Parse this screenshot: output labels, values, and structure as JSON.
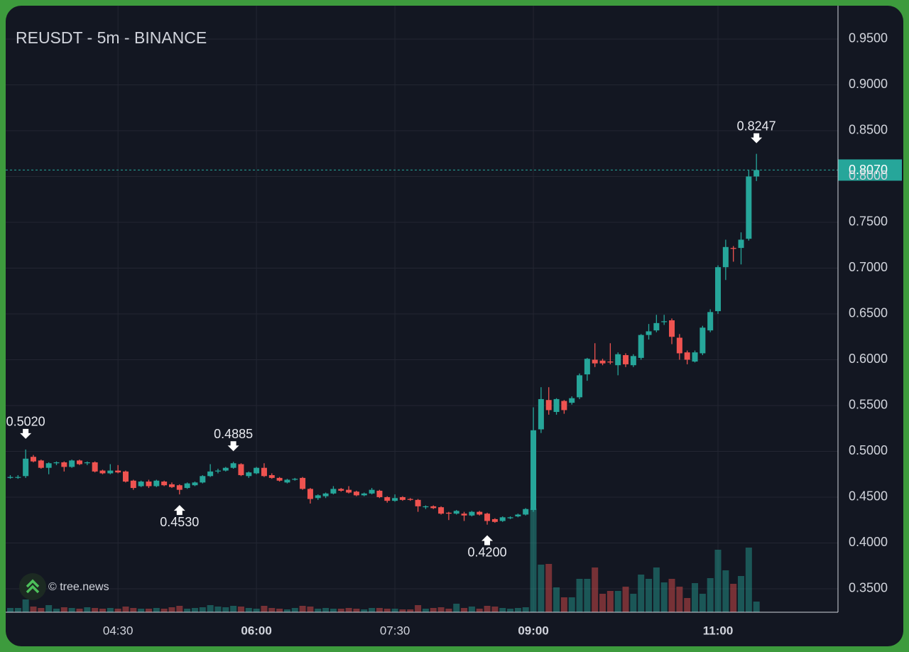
{
  "chart_data": {
    "type": "candlestick",
    "title": "REUSDT - 5m - BINANCE",
    "watermark": "© tree.news",
    "up_color": "#26a69a",
    "down_color": "#ef5350",
    "grid": true,
    "x": [
      "03:20",
      "03:25",
      "03:30",
      "03:35",
      "03:40",
      "03:45",
      "03:50",
      "03:55",
      "04:00",
      "04:05",
      "04:10",
      "04:15",
      "04:20",
      "04:25",
      "04:30",
      "04:35",
      "04:40",
      "04:45",
      "04:50",
      "04:55",
      "05:00",
      "05:05",
      "05:10",
      "05:15",
      "05:20",
      "05:25",
      "05:30",
      "05:35",
      "05:40",
      "05:45",
      "05:50",
      "05:55",
      "06:00",
      "06:05",
      "06:10",
      "06:15",
      "06:20",
      "06:25",
      "06:30",
      "06:35",
      "06:40",
      "06:45",
      "06:50",
      "06:55",
      "07:00",
      "07:05",
      "07:10",
      "07:15",
      "07:20",
      "07:25",
      "07:30",
      "07:35",
      "07:40",
      "07:45",
      "07:50",
      "07:55",
      "08:00",
      "08:05",
      "08:10",
      "08:15",
      "08:20",
      "08:25",
      "08:30",
      "08:35",
      "08:40",
      "08:45",
      "08:50",
      "08:55",
      "09:00",
      "09:05",
      "09:10",
      "09:15",
      "09:20",
      "09:25",
      "09:30",
      "09:35",
      "09:40",
      "09:45",
      "09:50",
      "09:55",
      "10:00",
      "10:05",
      "10:10",
      "10:15",
      "10:20",
      "10:25",
      "10:30",
      "10:35",
      "10:40",
      "10:45",
      "10:50",
      "10:55",
      "11:00",
      "11:05",
      "11:10",
      "11:15",
      "11:20",
      "11:25"
    ],
    "open": [
      0.471,
      0.472,
      0.473,
      0.494,
      0.49,
      0.482,
      0.487,
      0.488,
      0.483,
      0.49,
      0.487,
      0.488,
      0.479,
      0.476,
      0.479,
      0.478,
      0.468,
      0.462,
      0.467,
      0.462,
      0.467,
      0.464,
      0.463,
      0.46,
      0.463,
      0.466,
      0.473,
      0.478,
      0.479,
      0.482,
      0.486,
      0.473,
      0.476,
      0.482,
      0.474,
      0.471,
      0.466,
      0.469,
      0.471,
      0.459,
      0.449,
      0.451,
      0.454,
      0.459,
      0.458,
      0.456,
      0.452,
      0.454,
      0.457,
      0.45,
      0.446,
      0.45,
      0.448,
      0.447,
      0.439,
      0.44,
      0.439,
      0.433,
      0.432,
      0.432,
      0.43,
      0.434,
      0.432,
      0.426,
      0.424,
      0.427,
      0.429,
      0.431,
      0.436,
      0.524,
      0.556,
      0.543,
      0.555,
      0.553,
      0.559,
      0.584,
      0.6,
      0.599,
      0.598,
      0.594,
      0.605,
      0.594,
      0.602,
      0.627,
      0.632,
      0.641,
      0.643,
      0.624,
      0.608,
      0.598,
      0.607,
      0.632,
      0.653,
      0.701,
      0.722,
      0.722,
      0.732,
      0.8
    ],
    "high": [
      0.474,
      0.474,
      0.502,
      0.496,
      0.491,
      0.488,
      0.489,
      0.489,
      0.491,
      0.491,
      0.489,
      0.489,
      0.48,
      0.486,
      0.485,
      0.479,
      0.469,
      0.468,
      0.469,
      0.469,
      0.468,
      0.466,
      0.464,
      0.466,
      0.467,
      0.474,
      0.486,
      0.481,
      0.483,
      0.4885,
      0.487,
      0.478,
      0.483,
      0.487,
      0.476,
      0.472,
      0.47,
      0.471,
      0.472,
      0.46,
      0.453,
      0.455,
      0.462,
      0.46,
      0.462,
      0.457,
      0.455,
      0.46,
      0.458,
      0.451,
      0.453,
      0.451,
      0.449,
      0.448,
      0.441,
      0.441,
      0.44,
      0.434,
      0.436,
      0.434,
      0.435,
      0.435,
      0.433,
      0.427,
      0.429,
      0.429,
      0.432,
      0.438,
      0.548,
      0.57,
      0.57,
      0.558,
      0.556,
      0.56,
      0.585,
      0.602,
      0.618,
      0.601,
      0.618,
      0.608,
      0.607,
      0.606,
      0.628,
      0.639,
      0.649,
      0.649,
      0.645,
      0.628,
      0.61,
      0.61,
      0.637,
      0.655,
      0.703,
      0.731,
      0.724,
      0.739,
      0.807,
      0.8247
    ],
    "low": [
      0.47,
      0.47,
      0.471,
      0.488,
      0.481,
      0.475,
      0.485,
      0.478,
      0.482,
      0.485,
      0.485,
      0.477,
      0.475,
      0.475,
      0.476,
      0.466,
      0.458,
      0.461,
      0.46,
      0.461,
      0.462,
      0.46,
      0.453,
      0.459,
      0.462,
      0.465,
      0.472,
      0.476,
      0.478,
      0.481,
      0.473,
      0.471,
      0.475,
      0.472,
      0.47,
      0.467,
      0.465,
      0.468,
      0.458,
      0.443,
      0.447,
      0.449,
      0.453,
      0.456,
      0.454,
      0.451,
      0.451,
      0.453,
      0.449,
      0.444,
      0.445,
      0.446,
      0.446,
      0.434,
      0.437,
      0.437,
      0.431,
      0.425,
      0.431,
      0.424,
      0.429,
      0.43,
      0.42,
      0.422,
      0.423,
      0.426,
      0.428,
      0.43,
      0.434,
      0.52,
      0.54,
      0.54,
      0.541,
      0.551,
      0.557,
      0.577,
      0.592,
      0.594,
      0.595,
      0.583,
      0.592,
      0.592,
      0.6,
      0.622,
      0.63,
      0.638,
      0.617,
      0.6,
      0.595,
      0.597,
      0.605,
      0.63,
      0.65,
      0.687,
      0.707,
      0.704,
      0.73,
      0.795
    ],
    "close": [
      0.472,
      0.472,
      0.492,
      0.489,
      0.482,
      0.487,
      0.488,
      0.483,
      0.49,
      0.486,
      0.488,
      0.478,
      0.476,
      0.479,
      0.477,
      0.467,
      0.46,
      0.467,
      0.462,
      0.468,
      0.463,
      0.461,
      0.458,
      0.465,
      0.466,
      0.473,
      0.478,
      0.479,
      0.482,
      0.487,
      0.474,
      0.477,
      0.482,
      0.473,
      0.471,
      0.468,
      0.469,
      0.47,
      0.459,
      0.448,
      0.452,
      0.454,
      0.459,
      0.457,
      0.455,
      0.452,
      0.454,
      0.458,
      0.45,
      0.446,
      0.449,
      0.447,
      0.447,
      0.44,
      0.44,
      0.438,
      0.432,
      0.432,
      0.435,
      0.43,
      0.434,
      0.431,
      0.424,
      0.423,
      0.428,
      0.428,
      0.431,
      0.437,
      0.523,
      0.557,
      0.545,
      0.557,
      0.545,
      0.558,
      0.583,
      0.601,
      0.596,
      0.596,
      0.597,
      0.606,
      0.595,
      0.604,
      0.627,
      0.631,
      0.64,
      0.642,
      0.625,
      0.607,
      0.6,
      0.608,
      0.635,
      0.652,
      0.701,
      0.723,
      0.721,
      0.731,
      0.8,
      0.807
    ],
    "volume": [
      6,
      6,
      18,
      8,
      6,
      10,
      5,
      7,
      6,
      5,
      7,
      6,
      5,
      6,
      5,
      8,
      6,
      5,
      5,
      6,
      5,
      7,
      9,
      5,
      6,
      7,
      10,
      8,
      7,
      9,
      8,
      6,
      5,
      9,
      6,
      5,
      4,
      6,
      9,
      8,
      5,
      6,
      5,
      5,
      6,
      5,
      4,
      6,
      6,
      5,
      5,
      4,
      4,
      10,
      5,
      6,
      7,
      5,
      12,
      6,
      8,
      5,
      9,
      8,
      6,
      5,
      6,
      7,
      146,
      67,
      68,
      35,
      21,
      21,
      47,
      47,
      63,
      26,
      30,
      30,
      36,
      26,
      53,
      47,
      63,
      42,
      47,
      36,
      20,
      41,
      26,
      48,
      88,
      59,
      40,
      51,
      91,
      15
    ],
    "xlim": [
      "03:17",
      "12:18"
    ],
    "xticks": [
      "04:30",
      "06:00",
      "07:30",
      "09:00",
      "11:00"
    ],
    "ylim": [
      0.3244,
      0.9864
    ],
    "yticks": [
      {
        "value": 0.35,
        "label": "0.3500"
      },
      {
        "value": 0.4,
        "label": "0.4000"
      },
      {
        "value": 0.45,
        "label": "0.4500"
      },
      {
        "value": 0.5,
        "label": "0.5000"
      },
      {
        "value": 0.55,
        "label": "0.5500"
      },
      {
        "value": 0.6,
        "label": "0.6000"
      },
      {
        "value": 0.65,
        "label": "0.6500"
      },
      {
        "value": 0.7,
        "label": "0.7000"
      },
      {
        "value": 0.75,
        "label": "0.7500"
      },
      {
        "value": 0.8,
        "label": "0.8000"
      },
      {
        "value": 0.85,
        "label": "0.8500"
      },
      {
        "value": 0.9,
        "label": "0.9000"
      },
      {
        "value": 0.95,
        "label": "0.9500"
      }
    ],
    "current_price": {
      "value": 0.807,
      "label": "0.8070"
    },
    "annotations": [
      {
        "x": "03:30",
        "value": 0.502,
        "label": "0.5020",
        "arrow": "down"
      },
      {
        "x": "05:10",
        "value": 0.453,
        "label": "0.4530",
        "arrow": "up"
      },
      {
        "x": "05:45",
        "value": 0.4885,
        "label": "0.4885",
        "arrow": "down"
      },
      {
        "x": "08:30",
        "value": 0.42,
        "label": "0.4200",
        "arrow": "up"
      },
      {
        "x": "11:25",
        "value": 0.8247,
        "label": "0.8247",
        "arrow": "down"
      }
    ]
  }
}
